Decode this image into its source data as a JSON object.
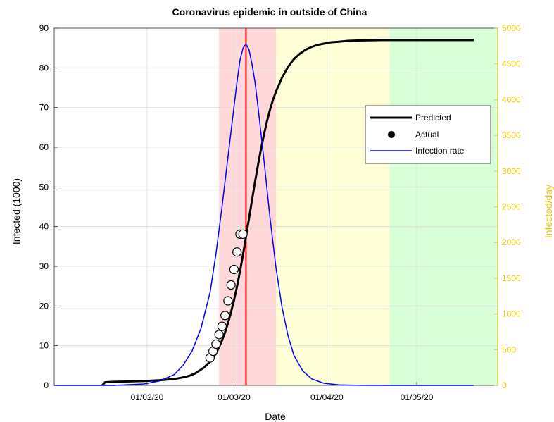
{
  "chart_data": {
    "type": "line",
    "title": "Coronavirus epidemic in outside of China",
    "xlabel": "Date",
    "ylabel_left": "Infected (1000)",
    "ylabel_right": "Infected/day",
    "x_ticks": [
      "01/02/20",
      "01/03/20",
      "01/04/20",
      "01/05/20"
    ],
    "x_tick_days": [
      31,
      60,
      91,
      121
    ],
    "xlim_days": [
      0,
      148
    ],
    "ylim_left": [
      0,
      90
    ],
    "y_ticks_left": [
      "0",
      "10",
      "20",
      "30",
      "40",
      "50",
      "60",
      "70",
      "80",
      "90"
    ],
    "ylim_right": [
      0,
      5000
    ],
    "y_ticks_right": [
      "0",
      "500",
      "1000",
      "1500",
      "2000",
      "2500",
      "3000",
      "3500",
      "4000",
      "4500",
      "5000"
    ],
    "grid": true,
    "legend": {
      "location": "upper-right",
      "entries": [
        "Predicted",
        "Actual",
        "Infection rate"
      ]
    },
    "shaded_regions": [
      {
        "from_day": 55,
        "to_day": 74,
        "color": "#ffd9d9"
      },
      {
        "from_day": 74,
        "to_day": 112,
        "color": "#ffffd7"
      },
      {
        "from_day": 112,
        "to_day": 148,
        "color": "#d9ffd9"
      }
    ],
    "peak_line": {
      "day": 64,
      "color": "#ff0000"
    },
    "series": [
      {
        "name": "Predicted",
        "type": "line",
        "color": "#000000",
        "x_days": [
          16,
          17,
          20,
          25,
          30,
          35,
          40,
          43,
          45,
          47,
          50,
          52,
          54,
          55,
          56,
          57,
          58,
          59,
          60,
          61,
          62,
          63,
          64,
          65,
          66,
          67,
          68,
          69,
          70,
          71,
          72,
          73,
          74,
          76,
          78,
          80,
          82,
          84,
          86,
          88,
          90,
          92,
          95,
          98,
          101,
          105,
          110,
          115,
          120,
          125,
          130,
          135,
          140
        ],
        "y": [
          0,
          0.8,
          0.9,
          1.0,
          1.1,
          1.3,
          1.6,
          2.0,
          2.4,
          3.0,
          4.5,
          6.0,
          8.0,
          9.6,
          11.3,
          13.3,
          15.7,
          18.4,
          21.4,
          24.9,
          28.7,
          32.9,
          37.4,
          42.0,
          46.6,
          51.2,
          55.5,
          59.5,
          63.2,
          66.5,
          69.4,
          71.9,
          74.0,
          77.5,
          80.2,
          82.2,
          83.6,
          84.6,
          85.3,
          85.8,
          86.1,
          86.4,
          86.6,
          86.8,
          86.9,
          86.95,
          87.0,
          87.0,
          87.0,
          87.0,
          87.0,
          87.0,
          87.0
        ]
      },
      {
        "name": "Actual",
        "type": "scatter",
        "color": "#000000",
        "x_days": [
          52,
          53,
          54,
          55,
          56,
          57,
          58,
          59,
          60,
          61,
          62,
          63
        ],
        "y": [
          6.9,
          8.6,
          10.4,
          12.8,
          14.9,
          17.6,
          21.3,
          25.3,
          29.2,
          33.6,
          38.1,
          38.1
        ]
      },
      {
        "name": "Infection rate",
        "type": "line",
        "color": "#0000ff",
        "axis": "right",
        "x_days": [
          0,
          20,
          30,
          35,
          40,
          43,
          46,
          49,
          52,
          54,
          56,
          58,
          60,
          61,
          62,
          63,
          64,
          65,
          66,
          67,
          68,
          70,
          72,
          74,
          76,
          78,
          80,
          83,
          86,
          90,
          95,
          100,
          110,
          120,
          140
        ],
        "y": [
          0,
          0,
          20,
          60,
          150,
          280,
          480,
          800,
          1300,
          1850,
          2500,
          3200,
          3900,
          4250,
          4550,
          4720,
          4780,
          4700,
          4500,
          4250,
          3900,
          3150,
          2350,
          1650,
          1100,
          700,
          420,
          200,
          90,
          30,
          8,
          2,
          0,
          0,
          0
        ]
      }
    ]
  }
}
